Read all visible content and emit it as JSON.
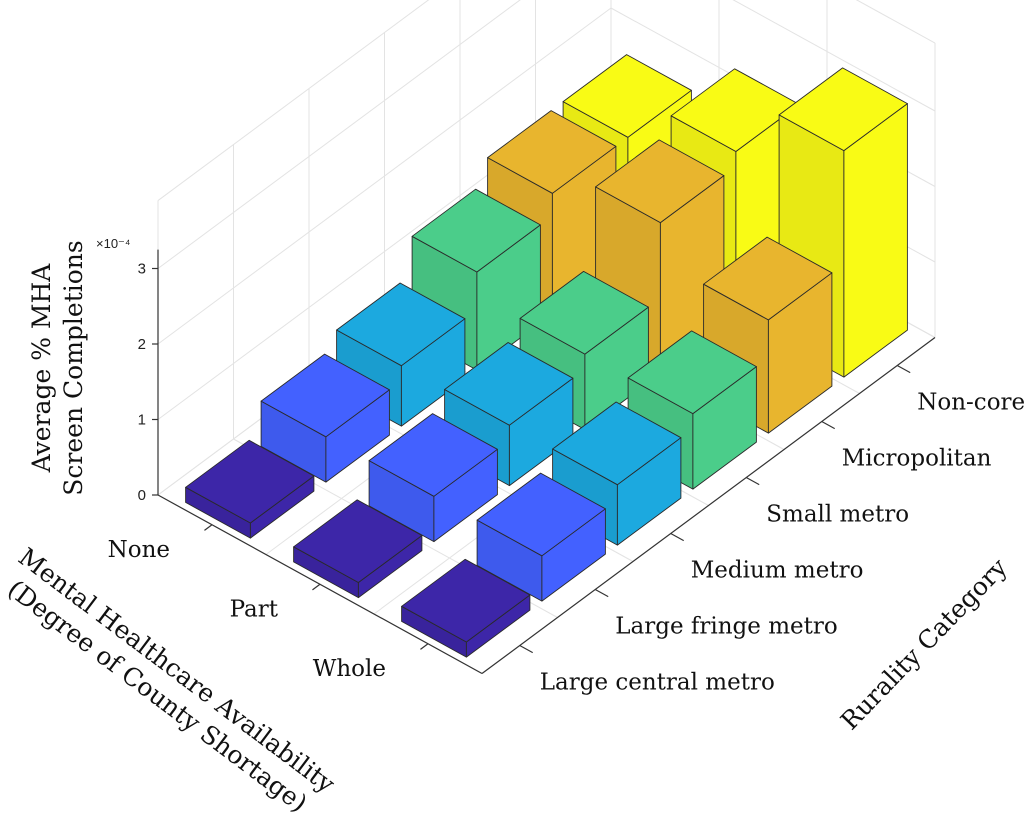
{
  "chart_data": {
    "type": "bar3d",
    "zlabel_lines": [
      "Average % MHA",
      "Screen Completions"
    ],
    "xlabel": "Rurality Category",
    "ylabel_lines": [
      "Mental Healthcare Availability",
      "(Degree of County Shortage)"
    ],
    "x_categories": [
      "Large central metro",
      "Large fringe metro",
      "Medium metro",
      "Small metro",
      "Micropolitan",
      "Non-core"
    ],
    "y_categories": [
      "None",
      "Part",
      "Whole"
    ],
    "z_ticks": [
      "0",
      "1",
      "2",
      "3"
    ],
    "z_multiplier": "×10⁻⁴",
    "zlim": [
      0,
      3
    ],
    "values_e4": [
      [
        0.2,
        0.2,
        0.2
      ],
      [
        0.6,
        0.6,
        0.6
      ],
      [
        0.8,
        0.8,
        0.8
      ],
      [
        1.3,
        1.0,
        1.0
      ],
      [
        1.6,
        2.0,
        1.5
      ],
      [
        1.6,
        2.2,
        3.0
      ]
    ],
    "colors": [
      "#3D26A8",
      "#4361FF",
      "#1CA9DF",
      "#4BCD8A",
      "#E8B52E",
      "#F9FB15"
    ],
    "grid": true
  }
}
